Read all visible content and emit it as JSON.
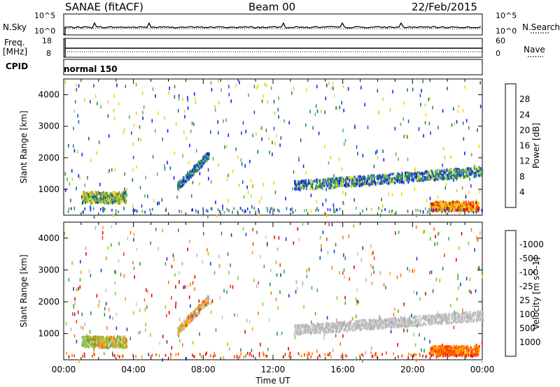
{
  "header": {
    "station": "SANAE (fitACF)",
    "beam": "Beam 00",
    "date": "22/Feb/2015"
  },
  "sky_panel": {
    "left_label": "N.Sky",
    "left_ticks": [
      "10^5",
      "10^0"
    ],
    "right_label": "N.Search",
    "right_ticks": [
      "10^5",
      "10^0"
    ]
  },
  "freq_panel": {
    "left_label_line1": "Freq.",
    "left_label_line2": "[MHz]",
    "left_ticks": [
      "18",
      "8"
    ],
    "right_label": "Nave",
    "right_ticks": [
      "60",
      "0"
    ]
  },
  "cpid_panel": {
    "label": "CPID",
    "value": "normal 150"
  },
  "x_axis": {
    "label": "Time UT",
    "tick_labels": [
      "00:00",
      "04:00",
      "08:00",
      "12:00",
      "16:00",
      "20:00",
      "00:00"
    ]
  },
  "chart_data": [
    {
      "type": "heatmap",
      "title": "",
      "xlabel": "Time UT",
      "ylabel": "Slant Range [km]",
      "xlim_hours": [
        0,
        24
      ],
      "ylim_km": [
        180,
        4500
      ],
      "y_ticks": [
        1000,
        2000,
        3000,
        4000
      ],
      "colorbar": {
        "label": "Power [dB]",
        "ticks": [
          "4",
          "8",
          "12",
          "16",
          "20",
          "24",
          "28"
        ],
        "colors": [
          "#1a1aff",
          "#1a5fae",
          "#2e8b57",
          "#5fb35f",
          "#c8dc28",
          "#ffd21a",
          "#ffa500",
          "#ff7a00",
          "#ff4000",
          "#e60000"
        ]
      },
      "features": [
        {
          "time_start": 1.0,
          "time_end": 3.6,
          "range_start": 600,
          "range_end": 950,
          "level": "8-20 dB"
        },
        {
          "time_start": 6.5,
          "time_end": 8.3,
          "range_start": 1000,
          "range_end": 2200,
          "level": "4-12 dB"
        },
        {
          "time_start": 13.2,
          "time_end": 24.0,
          "range_start": 1000,
          "range_end": 1700,
          "level": "4-16 dB"
        },
        {
          "time_start": 21.0,
          "time_end": 23.8,
          "range_start": 350,
          "range_end": 650,
          "level": "16-28 dB"
        }
      ]
    },
    {
      "type": "heatmap",
      "title": "",
      "xlabel": "Time UT",
      "ylabel": "Slant Range [km]",
      "xlim_hours": [
        0,
        24
      ],
      "ylim_km": [
        180,
        4500
      ],
      "y_ticks": [
        1000,
        2000,
        3000,
        4000
      ],
      "colorbar": {
        "label": "Velocity [m s^-1]",
        "ticks": [
          "1000",
          "500",
          "100",
          "25",
          "-25",
          "-100",
          "-500",
          "-1000"
        ],
        "colors": [
          "#1a3cc8",
          "#2e8b57",
          "#3cb43c",
          "#7ed321",
          "#c8c8c8",
          "#b4b4b4",
          "#ffa500",
          "#ff7a00",
          "#ff3c00",
          "#e60000"
        ]
      },
      "features": [
        {
          "time_start": 1.0,
          "time_end": 3.6,
          "range_start": 600,
          "range_end": 950,
          "level": "-100 to 100"
        },
        {
          "time_start": 6.5,
          "time_end": 8.3,
          "range_start": 1000,
          "range_end": 2200,
          "level": "-500 to 100"
        },
        {
          "time_start": 13.2,
          "time_end": 24.0,
          "range_start": 1000,
          "range_end": 1700,
          "level": "-25 to 25"
        },
        {
          "time_start": 21.0,
          "time_end": 23.8,
          "range_start": 350,
          "range_end": 650,
          "level": "-500 to -100"
        }
      ]
    }
  ]
}
